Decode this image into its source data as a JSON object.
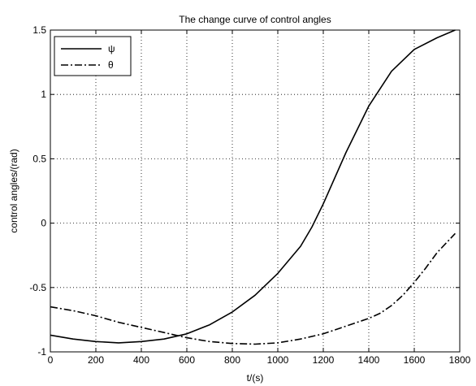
{
  "chart_data": {
    "type": "line",
    "title": "The change curve of control angles",
    "xlabel": "t/(s)",
    "ylabel": "control angles/(rad)",
    "xlim": [
      0,
      1800
    ],
    "ylim": [
      -1,
      1.5
    ],
    "xticks": [
      0,
      200,
      400,
      600,
      800,
      1000,
      1200,
      1400,
      1600,
      1800
    ],
    "yticks": [
      -1,
      -0.5,
      0,
      0.5,
      1,
      1.5
    ],
    "xtick_labels": [
      "0",
      "200",
      "400",
      "600",
      "800",
      "1000",
      "1200",
      "1400",
      "1600",
      "1800"
    ],
    "ytick_labels": [
      "-1",
      "-0.5",
      "0",
      "0.5",
      "1",
      "1.5"
    ],
    "grid": true,
    "legend_position": "top-left",
    "series": [
      {
        "name": "ψ",
        "style": "solid",
        "color": "#000000",
        "x": [
          0,
          100,
          200,
          300,
          400,
          500,
          600,
          700,
          800,
          900,
          1000,
          1100,
          1150,
          1200,
          1300,
          1400,
          1500,
          1600,
          1700,
          1780
        ],
        "y": [
          -0.87,
          -0.9,
          -0.92,
          -0.93,
          -0.92,
          -0.9,
          -0.86,
          -0.79,
          -0.69,
          -0.56,
          -0.39,
          -0.18,
          -0.03,
          0.15,
          0.55,
          0.91,
          1.18,
          1.35,
          1.44,
          1.5
        ]
      },
      {
        "name": "θ",
        "style": "dashdot",
        "color": "#000000",
        "x": [
          0,
          100,
          200,
          300,
          400,
          500,
          600,
          700,
          800,
          900,
          1000,
          1100,
          1200,
          1300,
          1400,
          1450,
          1500,
          1550,
          1600,
          1650,
          1700,
          1780
        ],
        "y": [
          -0.65,
          -0.68,
          -0.72,
          -0.77,
          -0.81,
          -0.85,
          -0.89,
          -0.92,
          -0.935,
          -0.94,
          -0.93,
          -0.9,
          -0.86,
          -0.8,
          -0.74,
          -0.7,
          -0.64,
          -0.56,
          -0.46,
          -0.35,
          -0.23,
          -0.08
        ]
      }
    ]
  }
}
